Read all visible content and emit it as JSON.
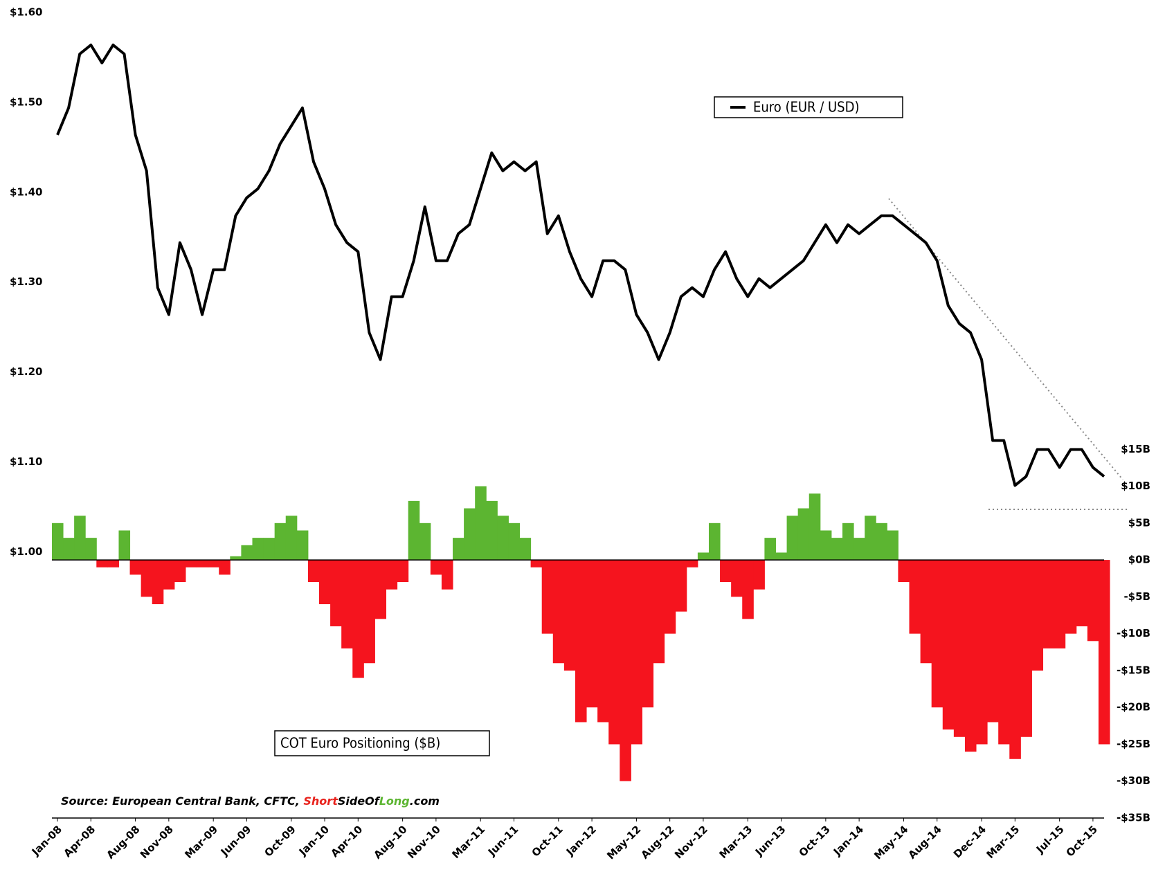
{
  "chart_data": {
    "type": "combo",
    "categories": [
      "Jan-08",
      null,
      null,
      "Apr-08",
      null,
      null,
      null,
      "Aug-08",
      null,
      null,
      "Nov-08",
      null,
      null,
      null,
      "Mar-09",
      null,
      null,
      "Jun-09",
      null,
      null,
      null,
      "Oct-09",
      null,
      null,
      "Jan-10",
      null,
      null,
      "Apr-10",
      null,
      null,
      null,
      "Aug-10",
      null,
      null,
      "Nov-10",
      null,
      null,
      null,
      "Mar-11",
      null,
      null,
      "Jun-11",
      null,
      null,
      null,
      "Oct-11",
      null,
      null,
      "Jan-12",
      null,
      null,
      null,
      "May-12",
      null,
      null,
      "Aug-12",
      null,
      null,
      "Nov-12",
      null,
      null,
      null,
      "Mar-13",
      null,
      null,
      "Jun-13",
      null,
      null,
      null,
      "Oct-13",
      null,
      null,
      "Jan-14",
      null,
      null,
      null,
      "May-14",
      null,
      null,
      "Aug-14",
      null,
      null,
      null,
      "Dec-14",
      null,
      null,
      "Mar-15",
      null,
      null,
      null,
      "Jul-15",
      null,
      null,
      "Oct-15",
      null
    ],
    "series": [
      {
        "name": "COT Euro Positioning ($B)",
        "type": "bar",
        "axis": "y2",
        "color": "#5cb531",
        "negative_color": "#f5141e",
        "values": [
          5,
          3,
          6,
          3,
          -1,
          -1,
          4,
          -2,
          -5,
          -6,
          -4,
          -3,
          -1,
          -1,
          -1,
          -2,
          0.5,
          2,
          3,
          3,
          5,
          6,
          4,
          -3,
          -6,
          -9,
          -12,
          -16,
          -14,
          -8,
          -4,
          -3,
          8,
          5,
          -2,
          -4,
          3,
          7,
          10,
          8,
          6,
          5,
          3,
          -1,
          -10,
          -14,
          -15,
          -22,
          -20,
          -22,
          -25,
          -30,
          -25,
          -20,
          -14,
          -10,
          -7,
          -1,
          1,
          5,
          -3,
          -5,
          -8,
          -4,
          3,
          1,
          6,
          7,
          9,
          4,
          3,
          5,
          3,
          6,
          5,
          4,
          -3,
          -10,
          -14,
          -20,
          -23,
          -24,
          -26,
          -25,
          -22,
          -25,
          -27,
          -24,
          -15,
          -12,
          -12,
          -10,
          -9,
          -11,
          -25
        ]
      },
      {
        "name": "Euro (EUR / USD)",
        "type": "line",
        "axis": "y",
        "color": "#000000",
        "values": [
          1.47,
          1.5,
          1.56,
          1.57,
          1.55,
          1.57,
          1.56,
          1.47,
          1.43,
          1.3,
          1.27,
          1.35,
          1.32,
          1.27,
          1.32,
          1.32,
          1.38,
          1.4,
          1.41,
          1.43,
          1.46,
          1.48,
          1.5,
          1.44,
          1.41,
          1.37,
          1.35,
          1.34,
          1.25,
          1.22,
          1.29,
          1.29,
          1.33,
          1.39,
          1.33,
          1.33,
          1.36,
          1.37,
          1.41,
          1.45,
          1.43,
          1.44,
          1.43,
          1.44,
          1.36,
          1.38,
          1.34,
          1.31,
          1.29,
          1.33,
          1.33,
          1.32,
          1.27,
          1.25,
          1.22,
          1.25,
          1.29,
          1.3,
          1.29,
          1.32,
          1.34,
          1.31,
          1.29,
          1.31,
          1.3,
          1.31,
          1.32,
          1.33,
          1.35,
          1.37,
          1.35,
          1.37,
          1.36,
          1.37,
          1.38,
          1.38,
          1.37,
          1.36,
          1.35,
          1.33,
          1.28,
          1.26,
          1.25,
          1.22,
          1.13,
          1.13,
          1.08,
          1.09,
          1.12,
          1.12,
          1.1,
          1.12,
          1.12,
          1.1,
          1.09
        ]
      }
    ],
    "ylim": [
      0.71,
      1.6
    ],
    "yticks": [
      {
        "value": 1.0,
        "label": "$1.00"
      },
      {
        "value": 1.1,
        "label": "$1.10"
      },
      {
        "value": 1.2,
        "label": "$1.20"
      },
      {
        "value": 1.3,
        "label": "$1.30"
      },
      {
        "value": 1.4,
        "label": "$1.40"
      },
      {
        "value": 1.5,
        "label": "$1.50"
      },
      {
        "value": 1.6,
        "label": "$1.60"
      }
    ],
    "y2lim": [
      -35,
      73.5
    ],
    "y2ticks": [
      {
        "value": 15,
        "label": "$15B"
      },
      {
        "value": 10,
        "label": "$10B"
      },
      {
        "value": 5,
        "label": "$5B"
      },
      {
        "value": 0,
        "label": "$0B"
      },
      {
        "value": -5,
        "label": "-$5B"
      },
      {
        "value": -10,
        "label": "-$10B"
      },
      {
        "value": -15,
        "label": "-$15B"
      },
      {
        "value": -20,
        "label": "-$20B"
      },
      {
        "value": -25,
        "label": "-$25B"
      },
      {
        "value": -30,
        "label": "-$30B"
      },
      {
        "value": -35,
        "label": "-$35B"
      }
    ],
    "source": [
      "Source: European Central Bank, CFTC, ",
      "Short",
      "SideOf",
      "Long",
      ".com"
    ],
    "source_colors": [
      "#000000",
      "#e8221c",
      "#000000",
      "#5cb531",
      "#000000"
    ]
  }
}
